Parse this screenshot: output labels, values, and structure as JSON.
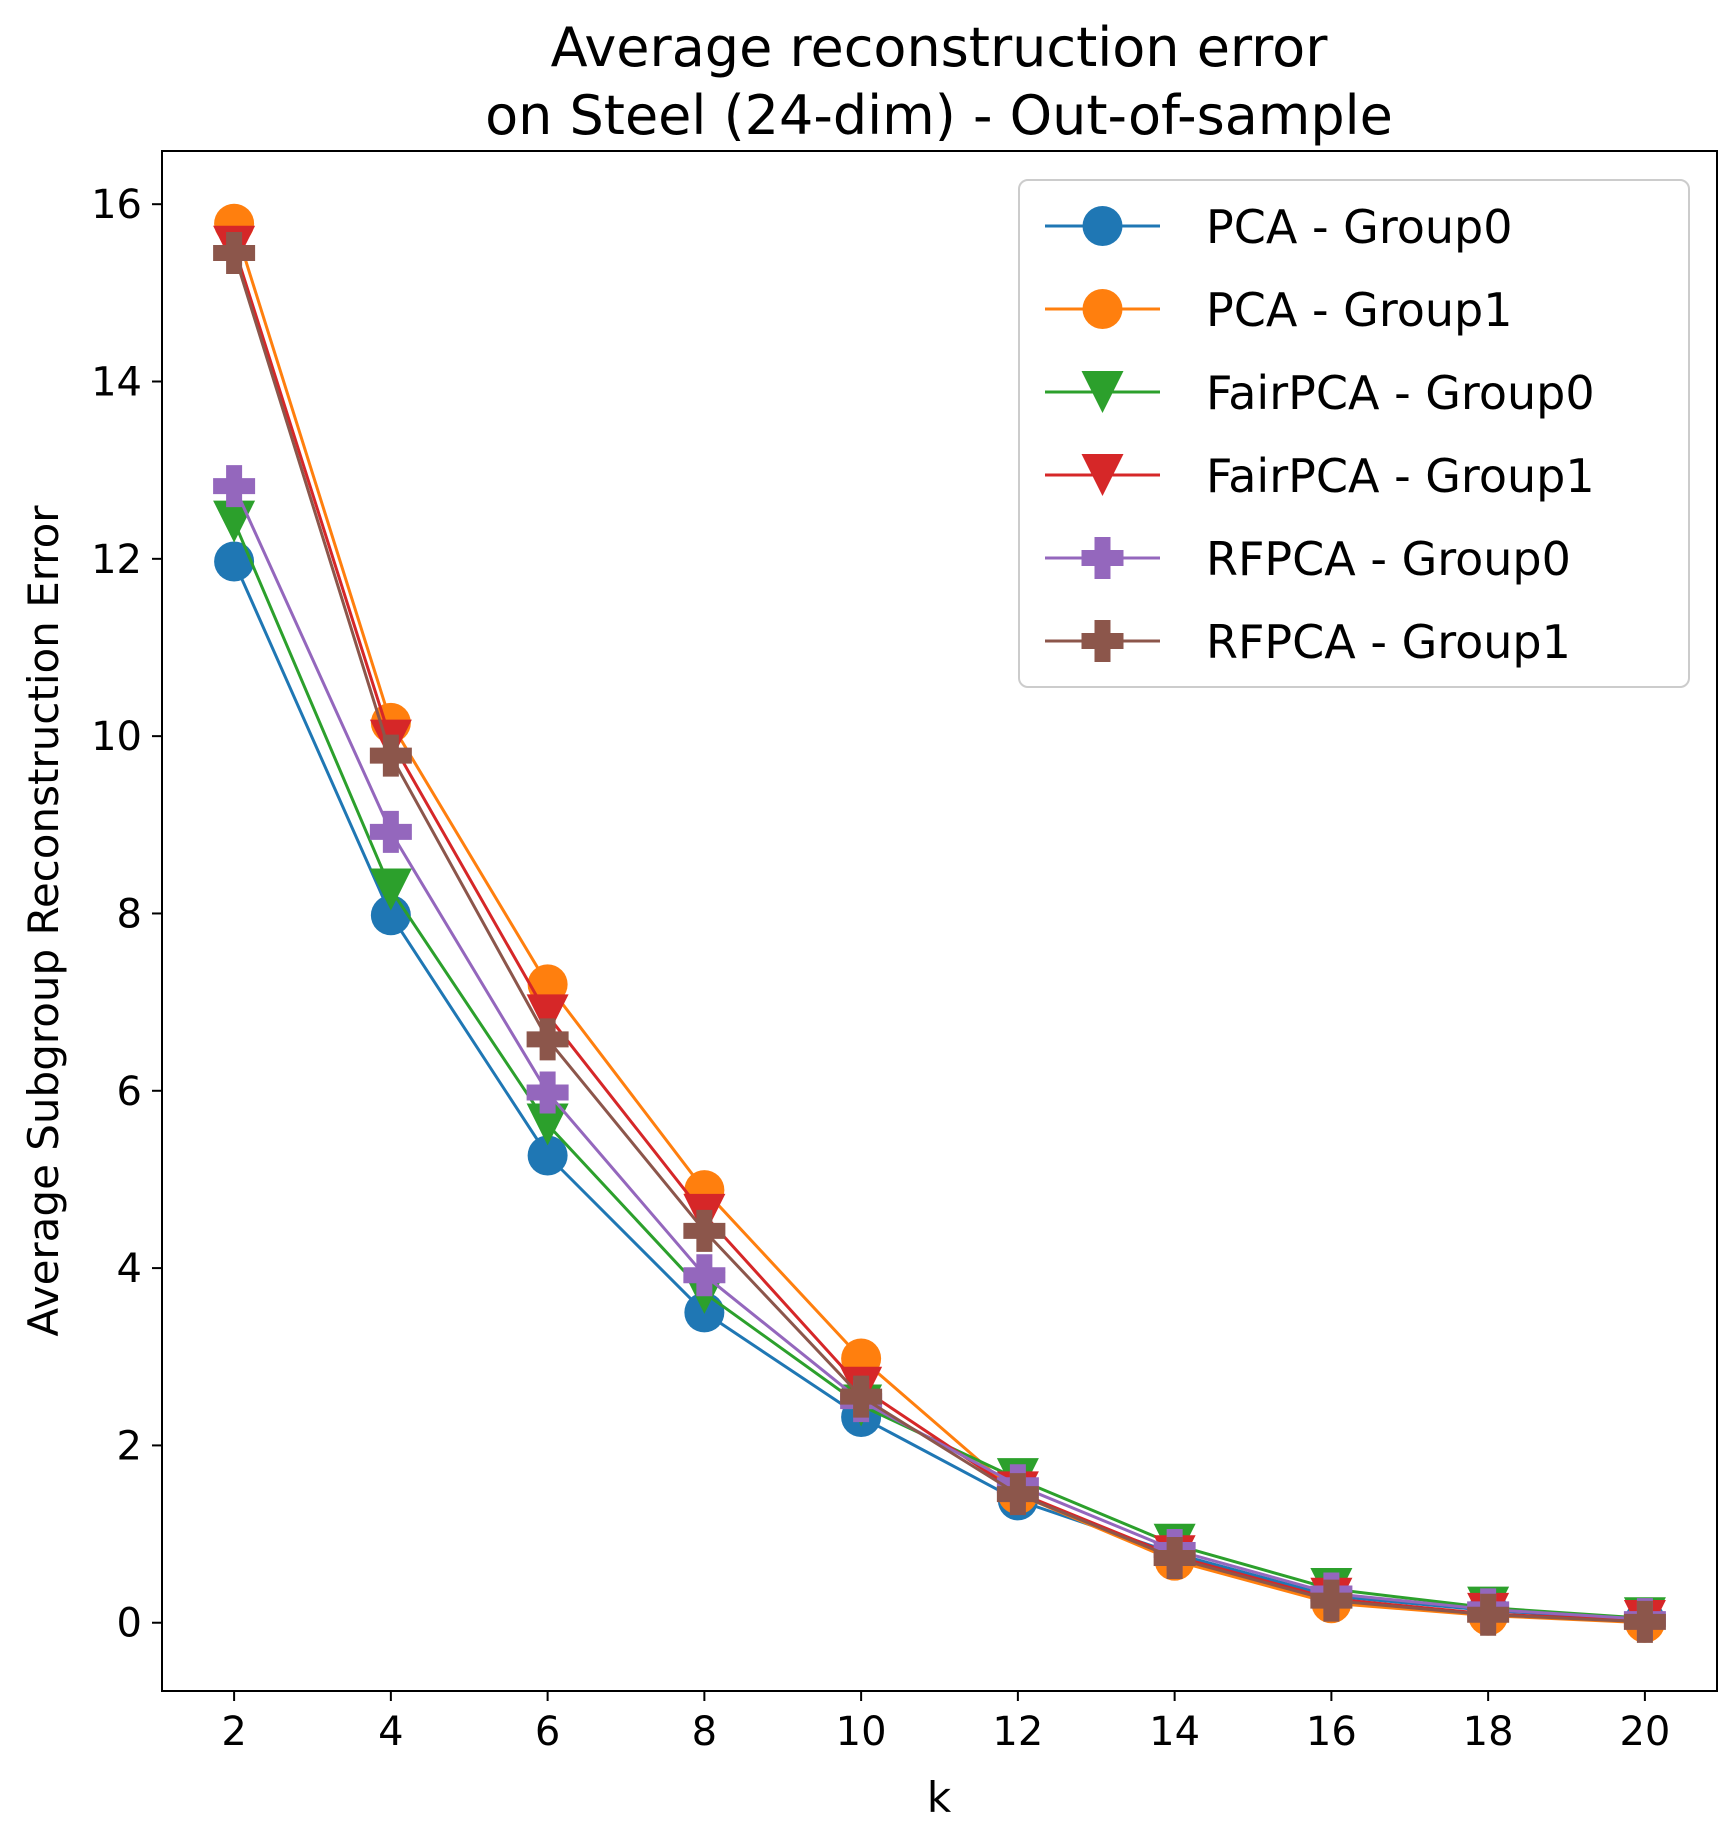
{
  "chart_data": {
    "type": "line",
    "title_lines": [
      "Average reconstruction error",
      "on Steel (24-dim) - Out-of-sample"
    ],
    "xlabel": "k",
    "ylabel": "Average Subgroup Reconstruction Error",
    "x": [
      2,
      4,
      6,
      8,
      10,
      12,
      14,
      16,
      18,
      20
    ],
    "xticks": [
      2,
      4,
      6,
      8,
      10,
      12,
      14,
      16,
      18,
      20
    ],
    "yticks": [
      0,
      2,
      4,
      6,
      8,
      10,
      12,
      14,
      16
    ],
    "xlim": [
      1.08,
      20.92
    ],
    "ylim": [
      -0.77,
      16.6
    ],
    "grid": false,
    "legend_position": "top-right",
    "series": [
      {
        "name": "PCA - Group0",
        "color": "#1f77b4",
        "marker": "circle",
        "values": [
          11.97,
          7.98,
          5.27,
          3.5,
          2.32,
          1.38,
          0.78,
          0.3,
          0.14,
          0.03
        ]
      },
      {
        "name": "PCA - Group1",
        "color": "#ff7f0e",
        "marker": "circle",
        "values": [
          15.78,
          10.15,
          7.2,
          4.88,
          2.98,
          1.45,
          0.7,
          0.22,
          0.08,
          0.0
        ]
      },
      {
        "name": "FairPCA - Group0",
        "color": "#2ca02c",
        "marker": "triangle-down",
        "values": [
          12.42,
          8.27,
          5.62,
          3.72,
          2.45,
          1.62,
          0.88,
          0.38,
          0.17,
          0.05
        ]
      },
      {
        "name": "FairPCA - Group1",
        "color": "#d62728",
        "marker": "triangle-down",
        "values": [
          15.52,
          9.95,
          6.85,
          4.6,
          2.65,
          1.47,
          0.75,
          0.27,
          0.1,
          0.02
        ]
      },
      {
        "name": "RFPCA - Group0",
        "color": "#9467bd",
        "marker": "plus",
        "values": [
          12.82,
          8.92,
          5.98,
          3.92,
          2.5,
          1.55,
          0.82,
          0.33,
          0.15,
          0.04
        ]
      },
      {
        "name": "RFPCA - Group1",
        "color": "#8c564b",
        "marker": "plus",
        "values": [
          15.45,
          9.78,
          6.58,
          4.42,
          2.55,
          1.45,
          0.73,
          0.25,
          0.09,
          0.01
        ]
      }
    ]
  }
}
